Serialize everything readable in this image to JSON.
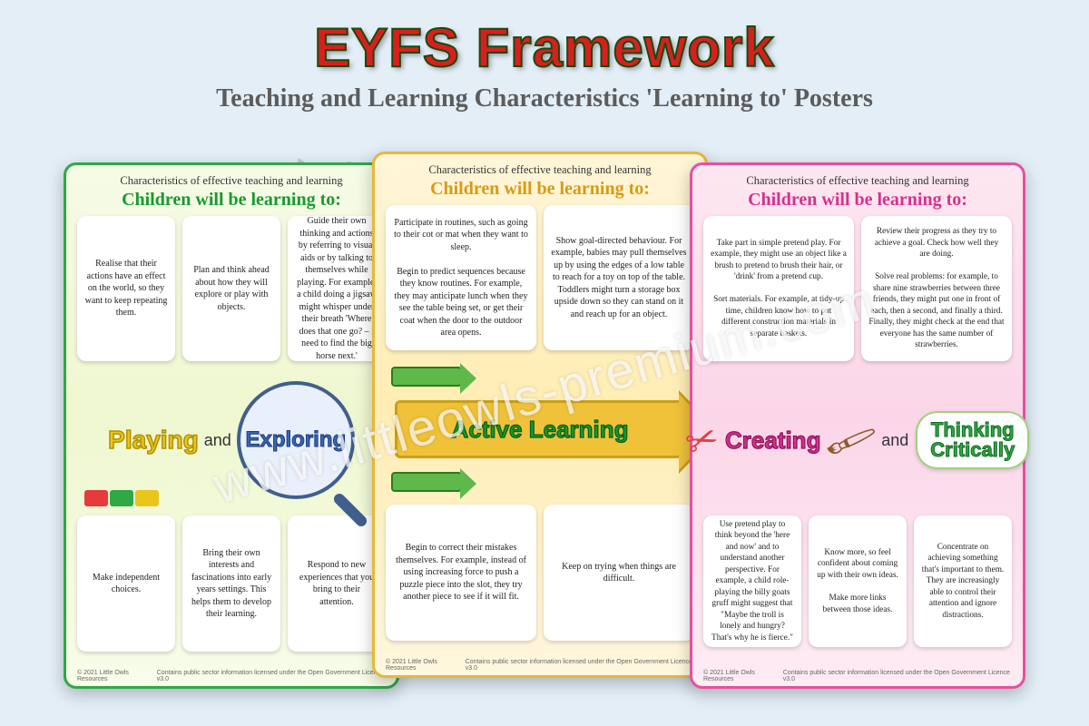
{
  "header": {
    "title": "EYFS Framework",
    "subtitle": "Teaching and Learning Characteristics 'Learning to' Posters"
  },
  "watermark": "www.littleowls-premium.com",
  "common": {
    "top_line": "Characteristics of effective teaching and learning",
    "learn_line": "Children will be learning to:",
    "and": "and",
    "footer_left": "© 2021 Little Owls Resources",
    "footer_right": "Contains public sector information licensed under the Open Government Licence v3.0"
  },
  "posters": {
    "green": {
      "border_color": "#2fa845",
      "band": {
        "word1": "Playing",
        "word2": "Exploring"
      },
      "top_boxes": [
        "Realise that their actions have an effect on the world, so they want to keep repeating them.",
        "Plan and think ahead about how they will explore or play with objects.",
        "Guide their own thinking and actions by referring to visual aids or by talking to themselves while playing. For example, a child doing a jigsaw might whisper under their breath 'Where does that one go? – I need to find the big horse next.'"
      ],
      "bottom_boxes": [
        "Make independent choices.",
        "Bring their own interests and fascinations into early years settings. This helps them to develop their learning.",
        "Respond to new experiences that you bring to their attention."
      ]
    },
    "yellow": {
      "border_color": "#e8b73a",
      "band": {
        "label": "Active Learning"
      },
      "top_boxes": [
        "Participate in routines, such as going to their cot or mat when they want to sleep.\n\nBegin to predict sequences because they know routines. For example, they may anticipate lunch when they see the table being set, or get their coat when the door to the outdoor area opens.",
        "Show goal-directed behaviour. For example, babies may pull themselves up by using the edges of a low table to reach for a toy on top of the table. Toddlers might turn a storage box upside down so they can stand on it and reach up for an object."
      ],
      "bottom_boxes": [
        "Begin to correct their mistakes themselves. For example, instead of using increasing force to push a puzzle piece into the slot, they try another piece to see if it will fit.",
        "Keep on trying when things are difficult."
      ]
    },
    "pink": {
      "border_color": "#e64fa0",
      "band": {
        "word1": "Creating",
        "cloud1": "Thinking",
        "cloud2": "Critically"
      },
      "top_boxes": [
        "Take part in simple pretend play. For example, they might use an object like a brush to pretend to brush their hair, or 'drink' from a pretend cup.\n\nSort materials. For example, at tidy-up time, children know how to put different construction materials in separate baskets.",
        "Review their progress as they try to achieve a goal. Check how well they are doing.\n\nSolve real problems: for example, to share nine strawberries between three friends, they might put one in front of each, then a second, and finally a third. Finally, they might check at the end that everyone has the same number of strawberries."
      ],
      "bottom_boxes": [
        "Use pretend play to think beyond the 'here and now' and to understand another perspective. For example, a child role-playing the billy goats gruff might suggest that \"Maybe the troll is lonely and hungry? That's why he is fierce.\"",
        "Know more, so feel confident about coming up with their own ideas.\n\nMake more links between those ideas.",
        "Concentrate on achieving something that's important to them. They are increasingly able to control their attention and ignore distractions."
      ]
    }
  }
}
